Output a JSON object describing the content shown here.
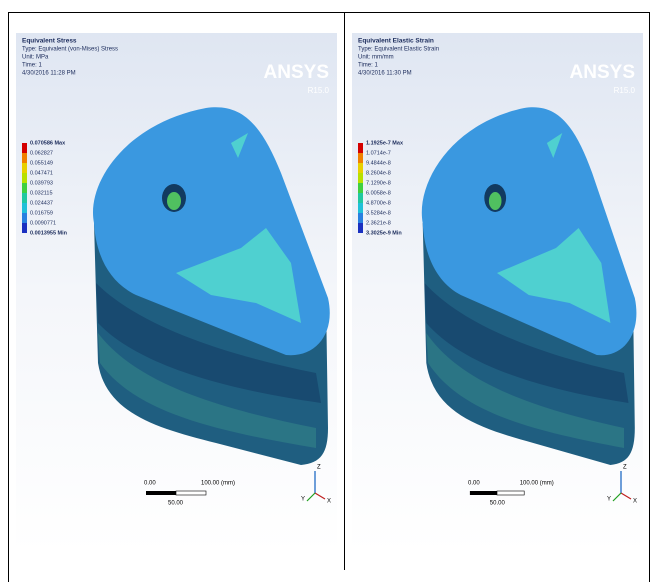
{
  "panels": [
    {
      "title": "Equivalent Stress",
      "type": "Type: Equivalent (von-Mises) Stress",
      "unit": "Unit: MPa",
      "time": "Time: 1",
      "date": "4/30/2016 11:28 PM",
      "logo": "ANSYS",
      "version": "R15.0",
      "legend": [
        "0.070586 Max",
        "0.062827",
        "0.055149",
        "0.047471",
        "0.039793",
        "0.032115",
        "0.024437",
        "0.016759",
        "0.0090771",
        "0.0013955 Min"
      ],
      "scale": {
        "start": "0.00",
        "end": "100.00 (mm)",
        "mid": "50.00"
      },
      "axes": {
        "z": "Z",
        "y": "Y",
        "x": "X"
      }
    },
    {
      "title": "Equivalent Elastic Strain",
      "type": "Type: Equivalent Elastic Strain",
      "unit": "Unit: mm/mm",
      "time": "Time: 1",
      "date": "4/30/2016 11:30 PM",
      "logo": "ANSYS",
      "version": "R15.0",
      "legend": [
        "1.1925e-7 Max",
        "1.0714e-7",
        "9.4844e-8",
        "8.2604e-8",
        "7.1290e-8",
        "6.0058e-8",
        "4.8700e-8",
        "3.5284e-8",
        "2.3621e-8",
        "3.3025e-9 Min"
      ],
      "scale": {
        "start": "0.00",
        "end": "100.00 (mm)",
        "mid": "50.00"
      },
      "axes": {
        "z": "Z",
        "y": "Y",
        "x": "X"
      }
    }
  ]
}
